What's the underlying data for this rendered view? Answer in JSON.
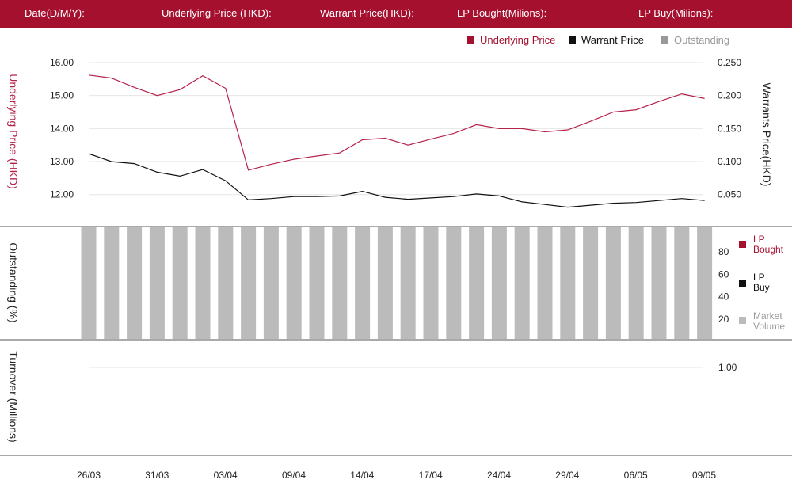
{
  "header": {
    "date_label": "Date(D/M/Y):",
    "underlying_label": "Underlying Price (HKD):",
    "warrant_label": "Warrant  Price(HKD):",
    "lp_bought_label": "LP Bought(Milions):",
    "lp_buy_label": "LP Buy(Milions):"
  },
  "colors": {
    "brand": "#a6102f",
    "underlying": "#b5234a",
    "warrant": "#111111",
    "outstanding": "#bbbbbb",
    "legend_outstanding": "#999999"
  },
  "price_legend": {
    "underlying": "Underlying Price",
    "warrant": "Warrant  Price",
    "outstanding": "Outstanding"
  },
  "outstanding_legend": {
    "lp_bought_line1": "LP",
    "lp_bought_line2": "Bought",
    "lp_buy_line1": "LP",
    "lp_buy_line2": "Buy",
    "market_volume_line1": "Market",
    "market_volume_line2": "Volume"
  },
  "chart_data": [
    {
      "type": "line",
      "ylabel_left": "Underlying Price (HKD)",
      "ylabel_right": "Warrants  Price(HKD)",
      "ylim_left": [
        11.25,
        16.0
      ],
      "ylim_right": [
        0.0125,
        0.25
      ],
      "yticks_left": [
        "12.00",
        "13.00",
        "14.00",
        "15.00",
        "16.00"
      ],
      "yticks_right": [
        "0.050",
        "0.100",
        "0.150",
        "0.200",
        "0.250"
      ],
      "grid": true,
      "legend_position": "top-right",
      "series": [
        {
          "name": "Underlying Price",
          "axis": "left",
          "values": [
            15.62,
            15.53,
            15.25,
            15.0,
            15.18,
            15.6,
            15.22,
            12.74,
            12.92,
            13.07,
            13.17,
            13.26,
            13.66,
            13.71,
            13.5,
            13.68,
            13.85,
            14.12,
            14.0,
            14.0,
            13.9,
            13.96,
            14.22,
            14.5,
            14.57,
            14.82,
            15.05,
            14.91
          ]
        },
        {
          "name": "Warrant  Price",
          "axis": "right",
          "values": [
            0.112,
            0.1,
            0.097,
            0.084,
            0.078,
            0.088,
            0.071,
            0.042,
            0.044,
            0.047,
            0.047,
            0.048,
            0.055,
            0.046,
            0.043,
            0.045,
            0.047,
            0.051,
            0.048,
            0.039,
            0.035,
            0.031,
            0.034,
            0.037,
            0.038,
            0.041,
            0.044,
            0.041
          ]
        }
      ]
    },
    {
      "type": "bar",
      "ylabel": "Outstanding (%)",
      "ylim": [
        0,
        100
      ],
      "yticks": [
        "20",
        "40",
        "60",
        "80"
      ],
      "series": [
        {
          "name": "Outstanding",
          "values": [
            100,
            100,
            100,
            100,
            100,
            100,
            100,
            100,
            100,
            100,
            100,
            100,
            100,
            100,
            100,
            100,
            100,
            100,
            100,
            100,
            100,
            100,
            100,
            100,
            100,
            100,
            100,
            100
          ]
        }
      ]
    },
    {
      "type": "bar",
      "ylabel": "Turnover (Millions)",
      "yticks": [
        "1.00"
      ],
      "series": []
    }
  ],
  "x_axis": {
    "tick_labels": [
      "26/03",
      "31/03",
      "03/04",
      "09/04",
      "14/04",
      "17/04",
      "24/04",
      "29/04",
      "06/05",
      "09/05"
    ]
  }
}
